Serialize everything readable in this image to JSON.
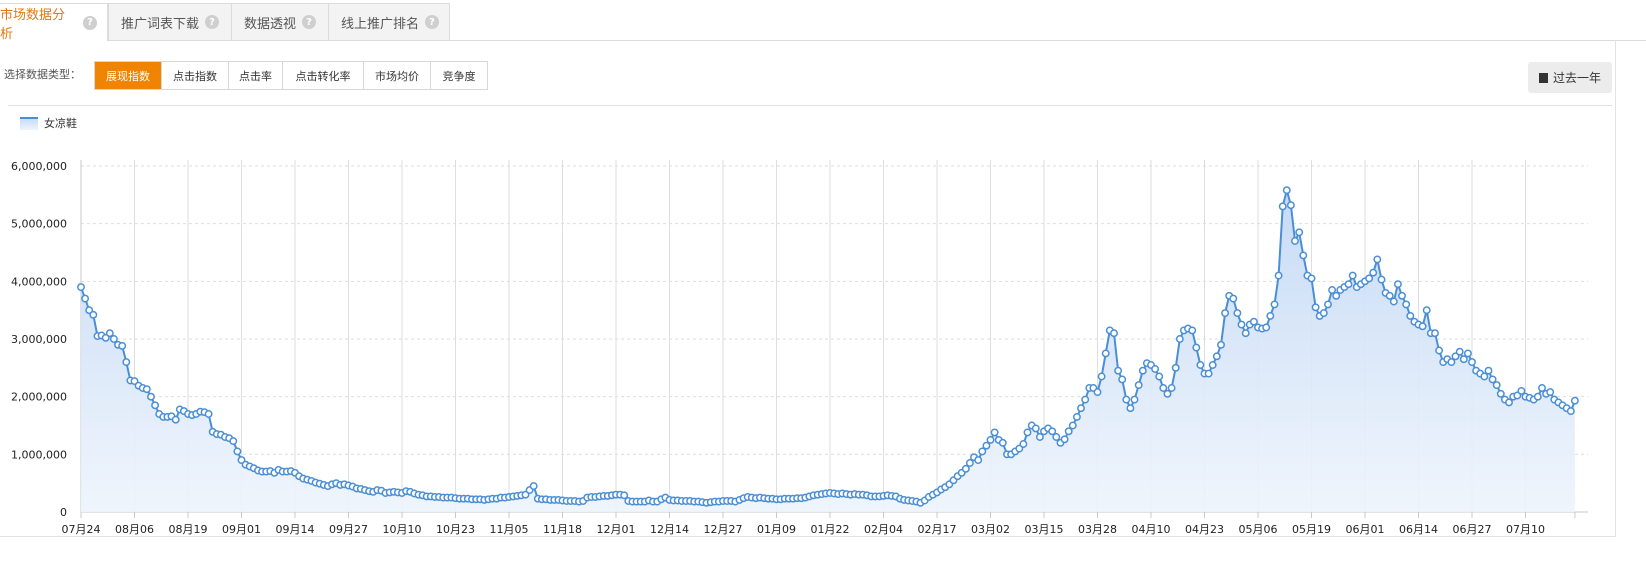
{
  "tabs": [
    {
      "label": "市场数据分析",
      "active": true
    },
    {
      "label": "推广词表下载",
      "active": false
    },
    {
      "label": "数据透视",
      "active": false
    },
    {
      "label": "线上推广排名",
      "active": false
    }
  ],
  "help_glyph": "?",
  "data_type_label": "选择数据类型：",
  "data_types": [
    "展现指数",
    "点击指数",
    "点击率",
    "点击转化率",
    "市场均价",
    "竞争度"
  ],
  "range_button": "过去一年",
  "colors": {
    "accent": "#f08300",
    "series": "#4a8fd6",
    "fill": "#dbe8f8"
  },
  "chart_data": {
    "type": "area",
    "series": [
      {
        "name": "女凉鞋"
      }
    ],
    "x_tick_labels": [
      "07月24",
      "08月06",
      "08月19",
      "09月01",
      "09月14",
      "09月27",
      "10月10",
      "10月23",
      "11月05",
      "11月18",
      "12月01",
      "12月14",
      "12月27",
      "01月09",
      "01月22",
      "02月04",
      "02月17",
      "03月02",
      "03月15",
      "03月28",
      "04月10",
      "04月23",
      "05月06",
      "05月19",
      "06月01",
      "06月14",
      "06月27",
      "07月10"
    ],
    "y_ticks": [
      0,
      1000000,
      2000000,
      3000000,
      4000000,
      5000000,
      6000000
    ],
    "y_tick_labels": [
      "0",
      "1,000,000",
      "2,000,000",
      "3,000,000",
      "4,000,000",
      "5,000,000",
      "6,000,000"
    ],
    "ylim": [
      0,
      6000000
    ],
    "grid": true,
    "legend": "top-left",
    "days_between_ticks": 13,
    "values": [
      3900000,
      3700000,
      3500000,
      3420000,
      3050000,
      3060000,
      3020000,
      3100000,
      3000000,
      2900000,
      2880000,
      2600000,
      2280000,
      2270000,
      2190000,
      2150000,
      2130000,
      2000000,
      1850000,
      1700000,
      1650000,
      1650000,
      1660000,
      1600000,
      1780000,
      1750000,
      1700000,
      1680000,
      1700000,
      1740000,
      1730000,
      1700000,
      1390000,
      1350000,
      1340000,
      1300000,
      1280000,
      1230000,
      1050000,
      900000,
      820000,
      790000,
      760000,
      720000,
      700000,
      700000,
      710000,
      680000,
      730000,
      700000,
      700000,
      710000,
      680000,
      620000,
      580000,
      560000,
      540000,
      510000,
      490000,
      470000,
      450000,
      480000,
      500000,
      470000,
      480000,
      460000,
      440000,
      410000,
      400000,
      380000,
      360000,
      350000,
      380000,
      370000,
      330000,
      340000,
      350000,
      340000,
      330000,
      360000,
      350000,
      320000,
      300000,
      290000,
      270000,
      270000,
      260000,
      260000,
      250000,
      250000,
      250000,
      240000,
      230000,
      230000,
      230000,
      220000,
      220000,
      220000,
      210000,
      220000,
      230000,
      230000,
      250000,
      250000,
      260000,
      270000,
      280000,
      290000,
      300000,
      380000,
      450000,
      230000,
      220000,
      220000,
      210000,
      210000,
      210000,
      200000,
      190000,
      190000,
      190000,
      180000,
      190000,
      250000,
      260000,
      260000,
      270000,
      280000,
      280000,
      290000,
      300000,
      300000,
      290000,
      190000,
      180000,
      180000,
      180000,
      180000,
      200000,
      180000,
      180000,
      220000,
      250000,
      210000,
      200000,
      200000,
      190000,
      190000,
      190000,
      180000,
      180000,
      170000,
      160000,
      170000,
      180000,
      180000,
      190000,
      190000,
      190000,
      180000,
      210000,
      240000,
      260000,
      250000,
      240000,
      250000,
      240000,
      230000,
      230000,
      220000,
      220000,
      230000,
      230000,
      230000,
      240000,
      240000,
      250000,
      270000,
      290000,
      300000,
      310000,
      320000,
      330000,
      320000,
      310000,
      320000,
      310000,
      300000,
      310000,
      300000,
      300000,
      290000,
      270000,
      270000,
      270000,
      280000,
      290000,
      280000,
      270000,
      230000,
      210000,
      200000,
      190000,
      180000,
      160000,
      200000,
      260000,
      300000,
      340000,
      390000,
      430000,
      480000,
      550000,
      620000,
      680000,
      750000,
      850000,
      950000,
      900000,
      1050000,
      1150000,
      1250000,
      1380000,
      1250000,
      1200000,
      1000000,
      1000000,
      1050000,
      1100000,
      1180000,
      1380000,
      1500000,
      1450000,
      1300000,
      1400000,
      1450000,
      1400000,
      1300000,
      1200000,
      1260000,
      1400000,
      1500000,
      1650000,
      1800000,
      1950000,
      2150000,
      2150000,
      2080000,
      2350000,
      2750000,
      3150000,
      3100000,
      2450000,
      2300000,
      1950000,
      1800000,
      1950000,
      2200000,
      2450000,
      2580000,
      2550000,
      2480000,
      2350000,
      2150000,
      2050000,
      2150000,
      2500000,
      3000000,
      3150000,
      3180000,
      3150000,
      2850000,
      2550000,
      2400000,
      2400000,
      2550000,
      2700000,
      2900000,
      3450000,
      3750000,
      3700000,
      3450000,
      3250000,
      3100000,
      3250000,
      3300000,
      3200000,
      3180000,
      3200000,
      3400000,
      3600000,
      4100000,
      5300000,
      5580000,
      5320000,
      4700000,
      4850000,
      4450000,
      4100000,
      4050000,
      3550000,
      3400000,
      3450000,
      3600000,
      3850000,
      3750000,
      3850000,
      3900000,
      3950000,
      4100000,
      3900000,
      3950000,
      4000000,
      4050000,
      4150000,
      4380000,
      4030000,
      3800000,
      3750000,
      3650000,
      3950000,
      3750000,
      3600000,
      3400000,
      3300000,
      3250000,
      3220000,
      3500000,
      3100000,
      3100000,
      2800000,
      2600000,
      2650000,
      2600000,
      2700000,
      2780000,
      2650000,
      2750000,
      2600000,
      2450000,
      2400000,
      2350000,
      2450000,
      2300000,
      2200000,
      2050000,
      1950000,
      1900000,
      2000000,
      2020000,
      2100000,
      2000000,
      1980000,
      1950000,
      2000000,
      2150000,
      2050000,
      2080000,
      1950000,
      1900000,
      1850000,
      1800000,
      1750000,
      1930000
    ]
  }
}
